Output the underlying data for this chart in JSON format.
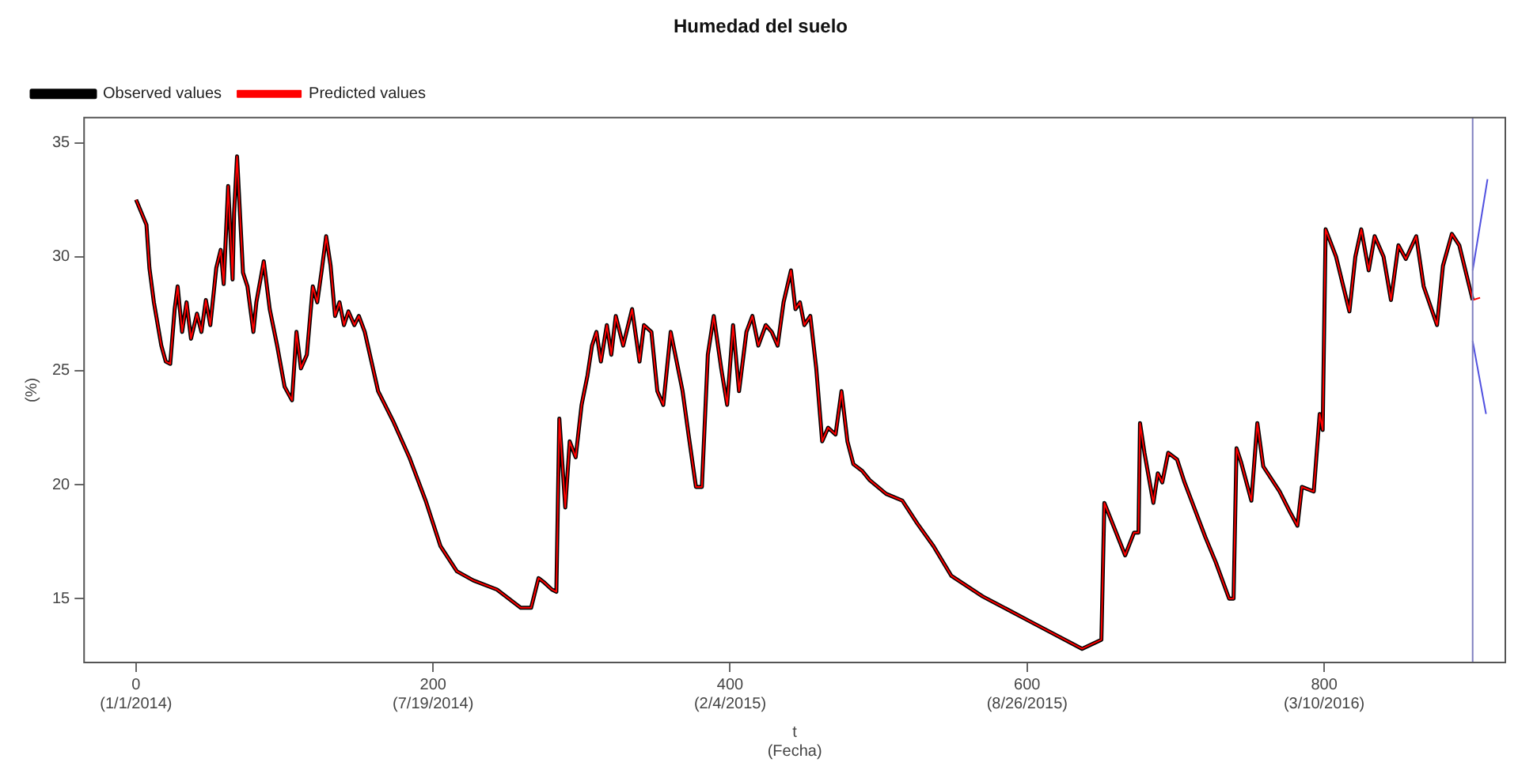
{
  "chart_data": {
    "type": "line",
    "title": "Humedad del suelo",
    "xlabel": "t\n(Fecha)",
    "ylabel": "(%)",
    "x": [
      0,
      7,
      9,
      12,
      17,
      20,
      23,
      26,
      28,
      31,
      34,
      37,
      41,
      44,
      47,
      50,
      54,
      57,
      59,
      62,
      65,
      66,
      68,
      72,
      75,
      79,
      81,
      86,
      90,
      95,
      100,
      105,
      108,
      111,
      115,
      119,
      122,
      125,
      128,
      131,
      134,
      137,
      140,
      143,
      147,
      150,
      154,
      163,
      173,
      184,
      195,
      205,
      216,
      227,
      243,
      259,
      266,
      271,
      275,
      280,
      283,
      285,
      289,
      292,
      296,
      300,
      304,
      307,
      310,
      313,
      317,
      320,
      323,
      328,
      334,
      339,
      342,
      347,
      351,
      355,
      360,
      364,
      368,
      372,
      377,
      381,
      385,
      389,
      394,
      398,
      402,
      406,
      411,
      415,
      419,
      424,
      428,
      432,
      436,
      441,
      444,
      447,
      450,
      454,
      458,
      462,
      466,
      471,
      475,
      479,
      483,
      489,
      494,
      505,
      516,
      526,
      537,
      549,
      570,
      602,
      637,
      650,
      652,
      666,
      672,
      675,
      676,
      679,
      685,
      688,
      691,
      695,
      701,
      706,
      720,
      727,
      736,
      739,
      741,
      744,
      751,
      755,
      759,
      770,
      777,
      782,
      785,
      793,
      797,
      799,
      801,
      808,
      817,
      821,
      825,
      830,
      834,
      840,
      845,
      850,
      855,
      862,
      867,
      876,
      880,
      886,
      891,
      900,
      905
    ],
    "series": [
      {
        "name": "Observed values",
        "color": "#000000",
        "values": [
          32.5,
          31.4,
          29.5,
          28.0,
          26.1,
          25.4,
          25.3,
          27.7,
          28.7,
          26.7,
          28.0,
          26.4,
          27.5,
          26.7,
          28.1,
          27.0,
          29.5,
          30.3,
          28.8,
          33.1,
          29.0,
          31.9,
          34.4,
          29.3,
          28.7,
          26.7,
          28.0,
          29.8,
          27.7,
          26.1,
          24.3,
          23.7,
          26.7,
          25.1,
          25.7,
          28.7,
          28.0,
          29.4,
          30.9,
          29.6,
          27.4,
          28.0,
          27.0,
          27.6,
          27.0,
          27.4,
          26.7,
          24.1,
          22.8,
          21.2,
          19.3,
          17.3,
          16.2,
          15.8,
          15.4,
          14.6,
          14.6,
          15.9,
          15.7,
          15.4,
          15.3,
          22.9,
          19.0,
          21.9,
          21.2,
          23.5,
          24.8,
          26.1,
          26.7,
          25.4,
          27.0,
          25.7,
          27.4,
          26.1,
          27.7,
          25.4,
          27.0,
          26.7,
          24.1,
          23.5,
          26.7,
          25.4,
          24.1,
          22.2,
          19.9,
          19.9,
          25.7,
          27.4,
          25.1,
          23.5,
          27.0,
          24.1,
          26.7,
          27.4,
          26.1,
          27.0,
          26.7,
          26.1,
          28.0,
          29.4,
          27.7,
          28.0,
          27.0,
          27.4,
          25.1,
          21.9,
          22.5,
          22.2,
          24.1,
          21.9,
          20.9,
          20.6,
          20.2,
          19.6,
          19.3,
          18.3,
          17.3,
          16.0,
          15.1,
          14.0,
          12.8,
          13.2,
          19.2,
          16.9,
          17.9,
          17.9,
          22.7,
          21.4,
          19.2,
          20.5,
          20.1,
          21.4,
          21.1,
          20.1,
          17.7,
          16.6,
          15.0,
          15.0,
          21.6,
          21.0,
          19.3,
          22.7,
          20.8,
          19.7,
          18.8,
          18.2,
          19.9,
          19.7,
          23.1,
          22.4,
          31.2,
          30.0,
          27.6,
          30.0,
          31.2,
          29.4,
          30.9,
          30.0,
          28.1,
          30.5,
          29.9,
          30.9,
          28.7,
          27.0,
          29.6,
          31.0,
          30.5,
          28.1,
          null
        ]
      },
      {
        "name": "Predicted values",
        "color": "#ff0000",
        "values": [
          32.5,
          31.4,
          29.5,
          28.0,
          26.1,
          25.4,
          25.3,
          27.7,
          28.7,
          26.7,
          28.0,
          26.4,
          27.5,
          26.7,
          28.1,
          27.0,
          29.5,
          30.3,
          28.8,
          33.1,
          29.0,
          31.9,
          34.4,
          29.3,
          28.7,
          26.7,
          28.0,
          29.8,
          27.7,
          26.1,
          24.3,
          23.7,
          26.7,
          25.1,
          25.7,
          28.7,
          28.0,
          29.4,
          30.9,
          29.6,
          27.4,
          28.0,
          27.0,
          27.6,
          27.0,
          27.4,
          26.7,
          24.1,
          22.8,
          21.2,
          19.3,
          17.3,
          16.2,
          15.8,
          15.4,
          14.6,
          14.6,
          15.9,
          15.7,
          15.4,
          15.3,
          22.9,
          19.0,
          21.9,
          21.2,
          23.5,
          24.8,
          26.1,
          26.7,
          25.4,
          27.0,
          25.7,
          27.4,
          26.1,
          27.7,
          25.4,
          27.0,
          26.7,
          24.1,
          23.5,
          26.7,
          25.4,
          24.1,
          22.2,
          19.9,
          19.9,
          25.7,
          27.4,
          25.1,
          23.5,
          27.0,
          24.1,
          26.7,
          27.4,
          26.1,
          27.0,
          26.7,
          26.1,
          28.0,
          29.4,
          27.7,
          28.0,
          27.0,
          27.4,
          25.1,
          21.9,
          22.5,
          22.2,
          24.1,
          21.9,
          20.9,
          20.6,
          20.2,
          19.6,
          19.3,
          18.3,
          17.3,
          16.0,
          15.1,
          14.0,
          12.8,
          13.2,
          19.2,
          16.9,
          17.9,
          17.9,
          22.7,
          21.4,
          19.2,
          20.5,
          20.1,
          21.4,
          21.1,
          20.1,
          17.7,
          16.6,
          15.0,
          15.0,
          21.6,
          21.0,
          19.3,
          22.7,
          20.8,
          19.7,
          18.8,
          18.2,
          19.9,
          19.7,
          23.1,
          22.4,
          31.2,
          30.0,
          27.6,
          30.0,
          31.2,
          29.4,
          30.9,
          30.0,
          28.1,
          30.5,
          29.9,
          30.9,
          28.7,
          27.0,
          29.6,
          31.0,
          30.5,
          28.1,
          28.2
        ]
      },
      {
        "color": "#5050e0",
        "x": [
          900,
          910
        ],
        "values": [
          29.4,
          33.4
        ]
      },
      {
        "color": "#5050e0",
        "x": [
          900,
          909
        ],
        "values": [
          26.3,
          23.1
        ]
      }
    ],
    "xlim": [
      -35,
      922
    ],
    "ylim": [
      12.2,
      36.1
    ],
    "xticks": [
      0,
      200,
      400,
      600,
      800
    ],
    "annotations": [
      "(1/1/2014)",
      "(7/19/2014)",
      "(2/4/2015)",
      "(8/26/2015)",
      "(3/10/2016)"
    ],
    "yticks": [
      15,
      20,
      25,
      30,
      35
    ],
    "ref_lines": [
      {
        "axis": "x",
        "value": 900,
        "color": "#8080c0"
      }
    ],
    "grid": false,
    "legend": "top left",
    "marker": "none",
    "line_style": "solid"
  }
}
